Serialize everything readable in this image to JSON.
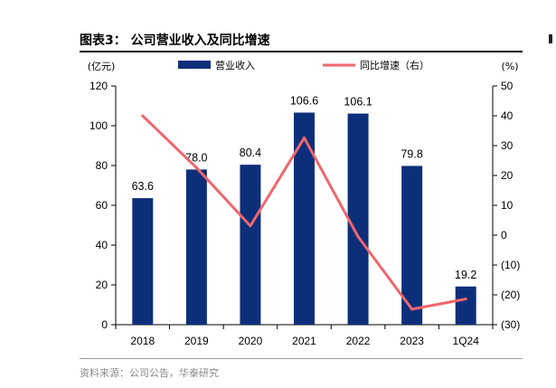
{
  "figure": {
    "title": "图表3： 公司营业收入及同比增速",
    "source": "资料来源：公司公告，华泰研究"
  },
  "chart_data": {
    "type": "bar",
    "categories": [
      "2018",
      "2019",
      "2020",
      "2021",
      "2022",
      "2023",
      "1Q24"
    ],
    "series": [
      {
        "name": "营业收入",
        "type": "bar",
        "axis": "left",
        "color": "#0d2f7a",
        "values": [
          63.6,
          78.0,
          80.4,
          106.6,
          106.1,
          79.8,
          19.2
        ],
        "labels": [
          "63.6",
          "78.0",
          "80.4",
          "106.6",
          "106.1",
          "79.8",
          "19.2"
        ]
      },
      {
        "name": "同比增速（右）",
        "type": "line",
        "axis": "right",
        "color": "#f0666d",
        "values": [
          40,
          22.6,
          3.1,
          32.6,
          -0.5,
          -24.8,
          -21.4
        ]
      }
    ],
    "y_left": {
      "unit": "(亿元)",
      "ylim": [
        0,
        120
      ],
      "ticks": [
        "0",
        "20",
        "40",
        "60",
        "80",
        "100",
        "120"
      ]
    },
    "y_right": {
      "unit": "(%)",
      "ylim": [
        -30,
        50
      ],
      "ticks": [
        "(30)",
        "(20)",
        "(10)",
        "0",
        "10",
        "20",
        "30",
        "40",
        "50"
      ]
    },
    "legend": {
      "placement": "top"
    },
    "grid": false
  }
}
